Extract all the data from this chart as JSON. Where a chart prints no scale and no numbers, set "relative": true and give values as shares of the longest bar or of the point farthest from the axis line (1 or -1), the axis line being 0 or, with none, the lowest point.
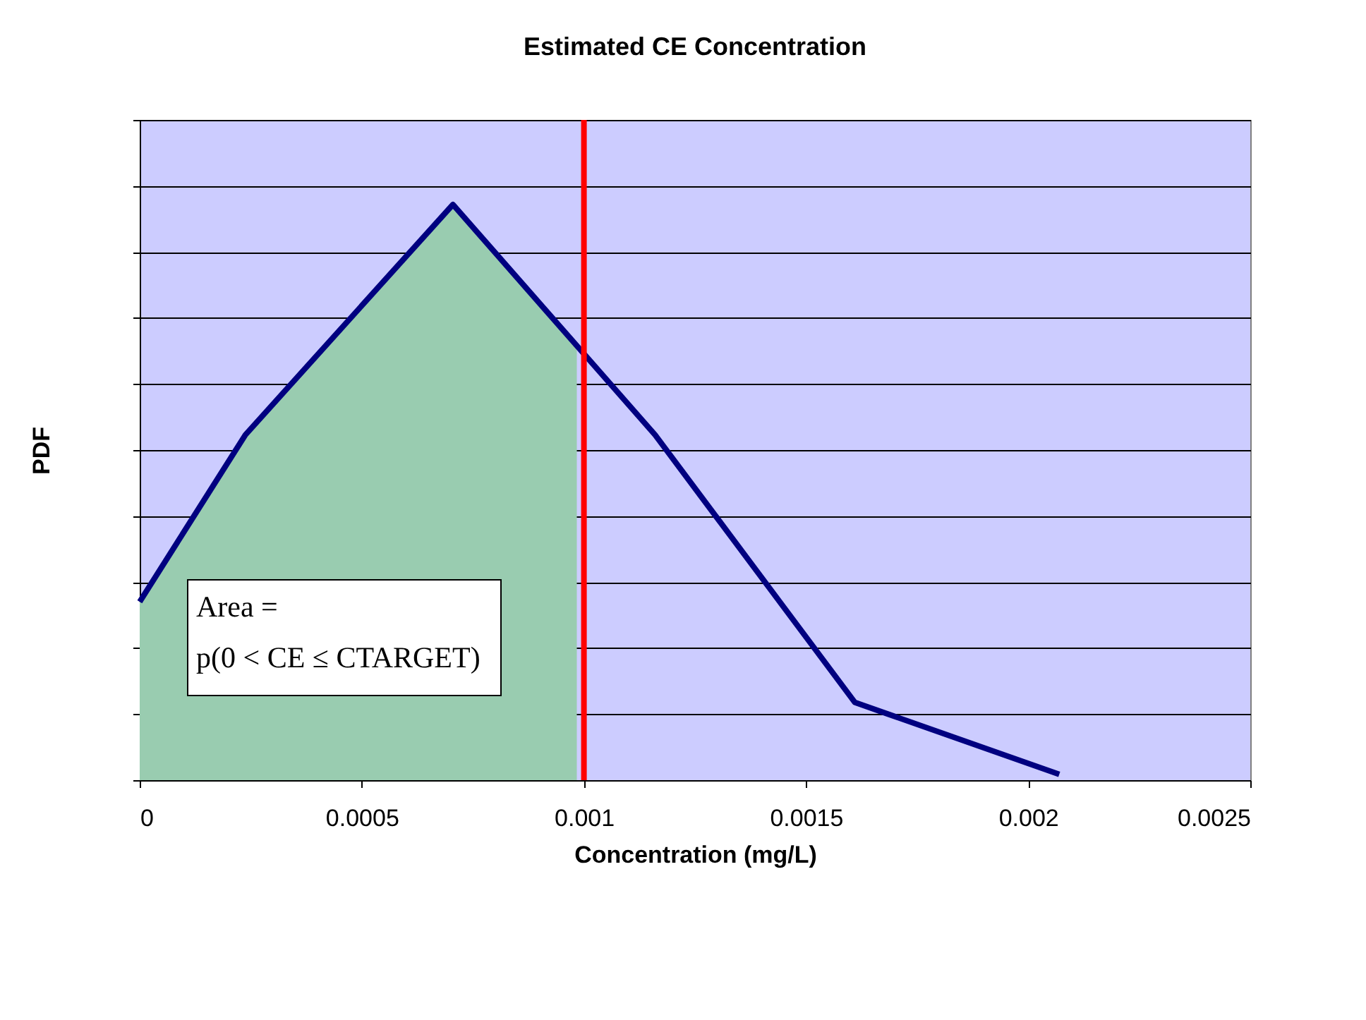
{
  "chart_data": {
    "type": "line",
    "title": "Estimated CE Concentration",
    "xlabel": "Concentration (mg/L)",
    "ylabel": "PDF",
    "relative": true,
    "series": [
      {
        "type": "area",
        "color": "#99ccb0",
        "x": [
          0,
          0.000238,
          0.000705,
          0.000984
        ],
        "values": [
          0.31,
          0.6,
          1,
          0.755
        ]
      },
      {
        "color": "#000080",
        "x": [
          0,
          0.000238,
          0.000705,
          0.00116,
          0.00161,
          0.00207
        ],
        "values": [
          0.31,
          0.6,
          1,
          0.6,
          0.135,
          0.01
        ]
      }
    ],
    "xlim": [
      0,
      0.0025
    ],
    "xticks": [
      0,
      0.0005,
      0.001,
      0.0015,
      0.002,
      0.0025
    ],
    "ref_lines": [
      {
        "axis": "x",
        "value": 0.001,
        "color": "#ff0000"
      }
    ],
    "annotations": [
      "Area =",
      "p(0 < CE ≤ CTARGET)"
    ],
    "grid": "y",
    "tick_labels": "x",
    "marker": "none",
    "line_style": "solid"
  }
}
